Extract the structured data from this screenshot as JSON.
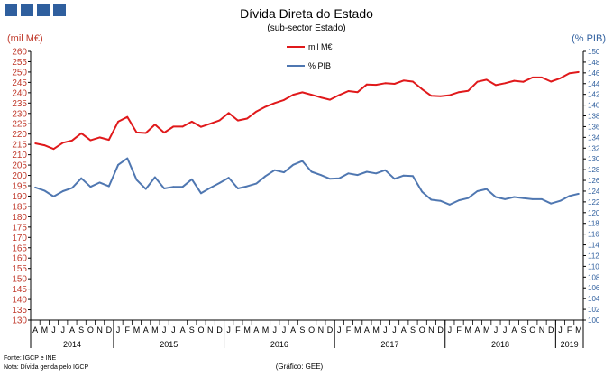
{
  "chart_data": {
    "type": "line",
    "title": "Dívida Direta do Estado",
    "subtitle": "(sub-sector Estado)",
    "ylabel_left": "(mil M€)",
    "ylabel_right": "(% PIB)",
    "ylim_left": [
      130,
      260
    ],
    "ylim_right": [
      100,
      150
    ],
    "left_ticks": [
      "130",
      "135",
      "140",
      "145",
      "150",
      "155",
      "160",
      "165",
      "170",
      "175",
      "180",
      "185",
      "190",
      "195",
      "200",
      "205",
      "210",
      "215",
      "220",
      "225",
      "230",
      "235",
      "240",
      "245",
      "250",
      "255",
      "260"
    ],
    "right_ticks": [
      "100",
      "102",
      "104",
      "106",
      "108",
      "110",
      "112",
      "114",
      "116",
      "118",
      "120",
      "122",
      "124",
      "126",
      "128",
      "130",
      "132",
      "134",
      "136",
      "138",
      "140",
      "142",
      "144",
      "146",
      "148",
      "150"
    ],
    "months": [
      "A",
      "M",
      "J",
      "J",
      "A",
      "S",
      "O",
      "N",
      "D",
      "J",
      "F",
      "M",
      "A",
      "M",
      "J",
      "J",
      "A",
      "S",
      "O",
      "N",
      "D",
      "J",
      "F",
      "M",
      "A",
      "M",
      "J",
      "J",
      "A",
      "S",
      "O",
      "N",
      "D",
      "J",
      "F",
      "M",
      "A",
      "M",
      "J",
      "J",
      "A",
      "S",
      "O",
      "N",
      "D",
      "J",
      "F",
      "M",
      "A",
      "M",
      "J",
      "J",
      "A",
      "S",
      "O",
      "N",
      "D",
      "J",
      "F",
      "M"
    ],
    "years": [
      {
        "label": "2014",
        "start": 0,
        "count": 9
      },
      {
        "label": "2015",
        "start": 9,
        "count": 12
      },
      {
        "label": "2016",
        "start": 21,
        "count": 12
      },
      {
        "label": "2017",
        "start": 33,
        "count": 12
      },
      {
        "label": "2018",
        "start": 45,
        "count": 12
      },
      {
        "label": "2019",
        "start": 57,
        "count": 3
      }
    ],
    "grid": false,
    "legend": "top-center",
    "series": [
      {
        "name": "mil M€",
        "axis": "left",
        "color": "#e0191b",
        "values": [
          215.5,
          214.6,
          212.8,
          215.8,
          216.9,
          220.4,
          217.0,
          218.4,
          217.2,
          226.0,
          228.3,
          220.8,
          220.5,
          224.6,
          220.7,
          223.6,
          223.6,
          226.0,
          223.5,
          225.0,
          226.6,
          230.2,
          226.6,
          227.5,
          230.9,
          233.2,
          235.0,
          236.5,
          239.0,
          240.2,
          239.0,
          237.7,
          236.6,
          238.9,
          240.8,
          240.3,
          244.0,
          243.8,
          244.6,
          244.3,
          245.9,
          245.4,
          241.7,
          238.5,
          238.3,
          238.8,
          240.3,
          240.9,
          245.3,
          246.3,
          243.7,
          244.6,
          245.8,
          245.3,
          247.4,
          247.4,
          245.4,
          247.0,
          249.4,
          250.0
        ]
      },
      {
        "name": "% PIB",
        "axis": "right",
        "color": "#4f77b1",
        "values": [
          124.7,
          124.1,
          123.0,
          124.0,
          124.6,
          126.4,
          124.8,
          125.6,
          124.9,
          128.9,
          130.1,
          126.1,
          124.4,
          126.6,
          124.5,
          124.8,
          124.8,
          126.2,
          123.6,
          124.6,
          125.5,
          126.5,
          124.5,
          124.9,
          125.4,
          126.8,
          127.9,
          127.5,
          128.9,
          129.6,
          127.6,
          127.0,
          126.3,
          126.4,
          127.3,
          127.0,
          127.6,
          127.3,
          127.9,
          126.3,
          126.9,
          126.8,
          123.9,
          122.4,
          122.2,
          121.5,
          122.3,
          122.7,
          124.0,
          124.4,
          122.9,
          122.5,
          122.9,
          122.7,
          122.5,
          122.5,
          121.7,
          122.2,
          123.1,
          123.5
        ]
      }
    ],
    "footnote_source": "Fonte: IGCP e INE",
    "footnote_note": "Nota: Dívida gerida pelo IGCP",
    "graph_credit": "(Gráfico: GEE)"
  },
  "header": {
    "logo_icon": "gee-logo-blocks",
    "logo_color": "#2f5f9e"
  }
}
